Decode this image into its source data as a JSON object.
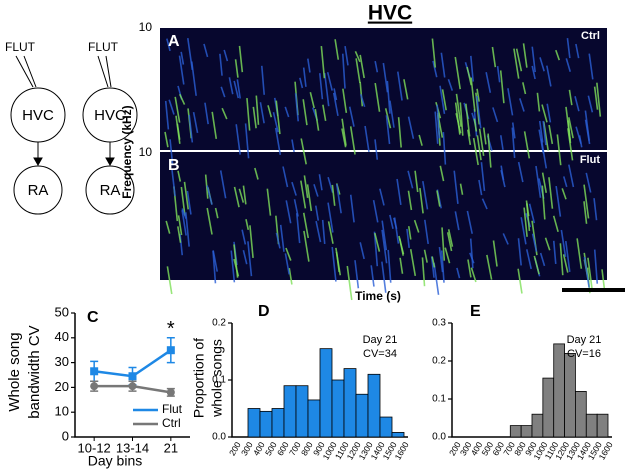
{
  "figure": {
    "title": "HVC",
    "diagram": {
      "inputs": [
        "FLUT",
        "FLUT"
      ],
      "nuclei": [
        "HVC",
        "HVC"
      ],
      "targets": [
        "RA",
        "RA"
      ]
    },
    "spectrograms": {
      "ylabel": "Frequency (kHz)",
      "xlabel": "Time (s)",
      "panels": [
        {
          "label": "A",
          "condition": "Ctrl",
          "ytick": 10
        },
        {
          "label": "B",
          "condition": "Flut",
          "ytick": 10
        }
      ]
    }
  },
  "chart_data": [
    {
      "type": "line",
      "panel": "C",
      "ylabel": [
        "Whole song",
        "bandwidth CV"
      ],
      "xlabel": "Day bins",
      "categories": [
        "10-12",
        "13-14",
        "21"
      ],
      "series": [
        {
          "name": "Flut",
          "color": "#1e88e5",
          "values": [
            26.5,
            24.5,
            35
          ],
          "errors": [
            4,
            3.5,
            5
          ]
        },
        {
          "name": "Ctrl",
          "color": "#777777",
          "values": [
            20.5,
            20.5,
            18
          ],
          "errors": [
            2,
            2,
            1.5
          ]
        }
      ],
      "ylim": [
        0,
        50
      ],
      "yticks": [
        0,
        10,
        20,
        30,
        40,
        50
      ],
      "annotation": "*"
    },
    {
      "type": "histogram",
      "panel": "D",
      "ylabel": [
        "Proportion of",
        "whole songs"
      ],
      "annotation": [
        "Day 21",
        "CV=34"
      ],
      "color": "#1e88e5",
      "bins": [
        200,
        300,
        400,
        500,
        600,
        700,
        800,
        900,
        1000,
        1100,
        1200,
        1300,
        1400,
        1500,
        1600
      ],
      "values": [
        0,
        0.05,
        0.045,
        0.05,
        0.09,
        0.09,
        0.065,
        0.155,
        0.1,
        0.12,
        0.075,
        0.11,
        0.035,
        0.008
      ],
      "ylim": [
        0,
        0.2
      ],
      "yticks": [
        {
          "value": 0,
          "label": "0.0"
        },
        0.1,
        0.2
      ]
    },
    {
      "type": "histogram",
      "panel": "E",
      "annotation": [
        "Day 21",
        "CV=16"
      ],
      "color": "#808080",
      "bins": [
        200,
        300,
        400,
        500,
        600,
        700,
        800,
        900,
        1000,
        1100,
        1200,
        1300,
        1400,
        1500,
        1600
      ],
      "values": [
        0,
        0,
        0,
        0,
        0,
        0.03,
        0.03,
        0.06,
        0.155,
        0.245,
        0.22,
        0.12,
        0.06,
        0.06
      ],
      "ylim": [
        0,
        0.3
      ],
      "yticks": [
        {
          "value": 0,
          "label": "0.0"
        },
        0.1,
        0.2,
        0.3
      ]
    }
  ]
}
